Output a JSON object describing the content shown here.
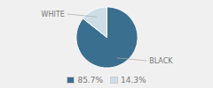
{
  "chart_data": {
    "type": "pie",
    "categories": [
      "BLACK",
      "WHITE"
    ],
    "values": [
      85.7,
      14.3
    ],
    "value_labels": [
      "85.7%",
      "14.3%"
    ],
    "colors": [
      "#3a6f8f",
      "#cddde8"
    ],
    "legend": "bottom"
  }
}
